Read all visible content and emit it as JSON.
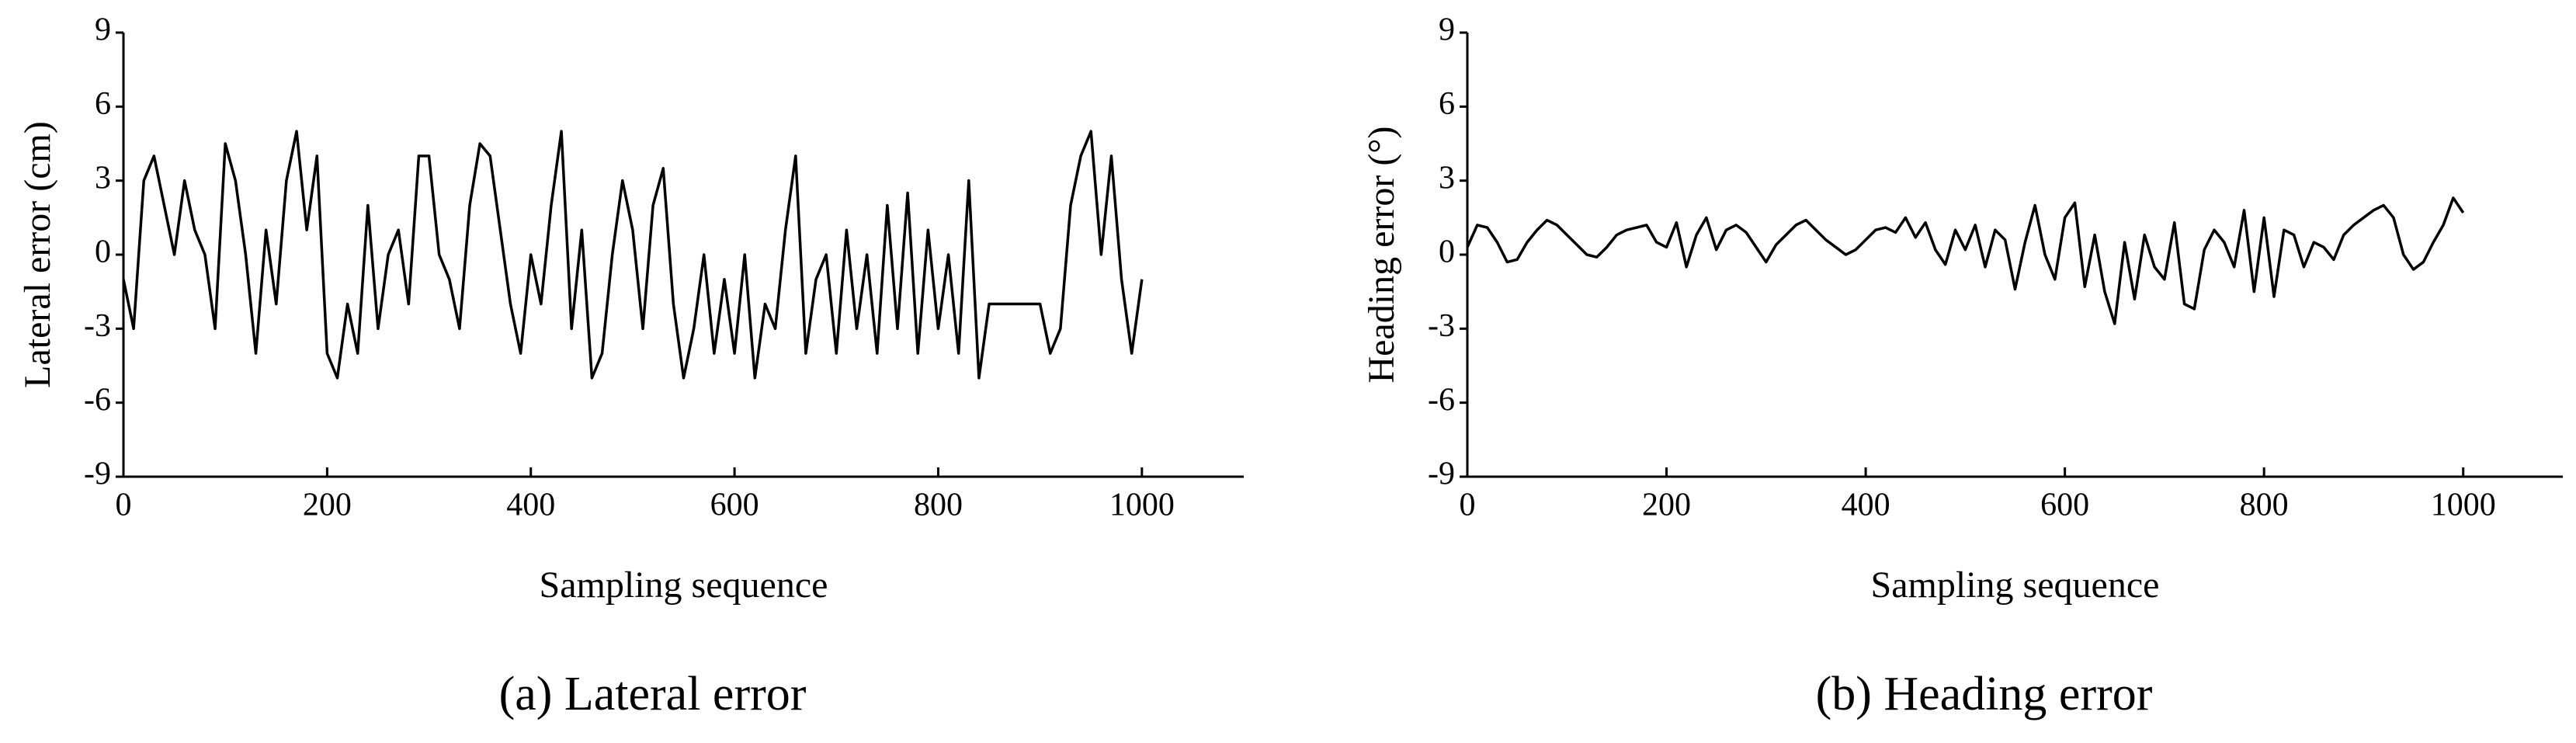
{
  "chart_data": [
    {
      "type": "line",
      "caption": "(a) Lateral error",
      "xlabel": "Sampling sequence",
      "ylabel": "Lateral error (cm)",
      "xlim": [
        0,
        1100
      ],
      "xticks": [
        0,
        200,
        400,
        600,
        800,
        1000
      ],
      "ylim": [
        -9,
        9
      ],
      "yticks": [
        -9,
        -6,
        -3,
        0,
        3,
        6,
        9
      ],
      "x": [
        0,
        10,
        20,
        30,
        40,
        50,
        60,
        70,
        80,
        90,
        100,
        110,
        120,
        130,
        140,
        150,
        160,
        170,
        180,
        190,
        200,
        210,
        220,
        230,
        240,
        250,
        260,
        270,
        280,
        290,
        300,
        310,
        320,
        330,
        340,
        350,
        360,
        370,
        380,
        390,
        400,
        410,
        420,
        430,
        440,
        450,
        460,
        470,
        480,
        490,
        500,
        510,
        520,
        530,
        540,
        550,
        560,
        570,
        580,
        590,
        600,
        610,
        620,
        630,
        640,
        650,
        660,
        670,
        680,
        690,
        700,
        710,
        720,
        730,
        740,
        750,
        760,
        770,
        780,
        790,
        800,
        810,
        820,
        830,
        840,
        850,
        860,
        870,
        880,
        890,
        900,
        910,
        920,
        930,
        940,
        950,
        960,
        970,
        980,
        990,
        1000
      ],
      "series": [
        {
          "color": "#000000",
          "values": [
            -1,
            -3,
            3,
            4,
            2,
            0,
            3,
            1,
            0,
            -3,
            4.5,
            3,
            0,
            -4,
            1,
            -2,
            3,
            5,
            1,
            4,
            -4,
            -5,
            -2,
            -4,
            2,
            -3,
            0,
            1,
            -2,
            4,
            4,
            0,
            -1,
            -3,
            2,
            4.5,
            4,
            1,
            -2,
            -4,
            0,
            -2,
            2,
            5,
            -3,
            1,
            -5,
            -4,
            0,
            3,
            1,
            -3,
            2,
            3.5,
            -2,
            -5,
            -3,
            0,
            -4,
            -1,
            -4,
            0,
            -5,
            -2,
            -3,
            1,
            4,
            -4,
            -1,
            0,
            -4,
            1,
            -3,
            0,
            -4,
            2,
            -3,
            2.5,
            -4,
            1,
            -3,
            0,
            -4,
            3,
            -5,
            -2,
            -2,
            -2,
            -2,
            -2,
            -2,
            -4,
            -3,
            2,
            4,
            5,
            0,
            4,
            -1,
            -4,
            -1
          ]
        }
      ]
    },
    {
      "type": "line",
      "caption": "(b) Heading error",
      "xlabel": "Sampling sequence",
      "ylabel": "Heading error (°)",
      "xlim": [
        0,
        1100
      ],
      "xticks": [
        0,
        200,
        400,
        600,
        800,
        1000
      ],
      "ylim": [
        -9,
        9
      ],
      "yticks": [
        -9,
        -6,
        -3,
        0,
        3,
        6,
        9
      ],
      "x": [
        0,
        10,
        20,
        30,
        40,
        50,
        60,
        70,
        80,
        90,
        100,
        110,
        120,
        130,
        140,
        150,
        160,
        170,
        180,
        190,
        200,
        210,
        220,
        230,
        240,
        250,
        260,
        270,
        280,
        290,
        300,
        310,
        320,
        330,
        340,
        350,
        360,
        370,
        380,
        390,
        400,
        410,
        420,
        430,
        440,
        450,
        460,
        470,
        480,
        490,
        500,
        510,
        520,
        530,
        540,
        550,
        560,
        570,
        580,
        590,
        600,
        610,
        620,
        630,
        640,
        650,
        660,
        670,
        680,
        690,
        700,
        710,
        720,
        730,
        740,
        750,
        760,
        770,
        780,
        790,
        800,
        810,
        820,
        830,
        840,
        850,
        860,
        870,
        880,
        890,
        900,
        910,
        920,
        930,
        940,
        950,
        960,
        970,
        980,
        990,
        1000
      ],
      "series": [
        {
          "color": "#000000",
          "values": [
            0.3,
            1.2,
            1.1,
            0.5,
            -0.3,
            -0.2,
            0.5,
            1,
            1.4,
            1.2,
            0.8,
            0.4,
            0,
            -0.1,
            0.3,
            0.8,
            1,
            1.1,
            1.2,
            0.5,
            0.3,
            1.3,
            -0.5,
            0.8,
            1.5,
            0.2,
            1,
            1.2,
            0.9,
            0.3,
            -0.3,
            0.4,
            0.8,
            1.2,
            1.4,
            1,
            0.6,
            0.3,
            0,
            0.2,
            0.6,
            1,
            1.1,
            0.9,
            1.5,
            0.7,
            1.3,
            0.2,
            -0.4,
            1,
            0.2,
            1.2,
            -0.5,
            1,
            0.6,
            -1.4,
            0.5,
            2,
            0,
            -1,
            1.5,
            2.1,
            -1.3,
            0.8,
            -1.5,
            -2.8,
            0.5,
            -1.8,
            0.8,
            -0.5,
            -1,
            1.3,
            -2,
            -2.2,
            0.2,
            1,
            0.5,
            -0.5,
            1.8,
            -1.5,
            1.5,
            -1.7,
            1,
            0.8,
            -0.5,
            0.5,
            0.3,
            -0.2,
            0.8,
            1.2,
            1.5,
            1.8,
            2,
            1.5,
            0,
            -0.6,
            -0.3,
            0.5,
            1.2,
            2.3,
            1.7
          ]
        }
      ]
    }
  ]
}
